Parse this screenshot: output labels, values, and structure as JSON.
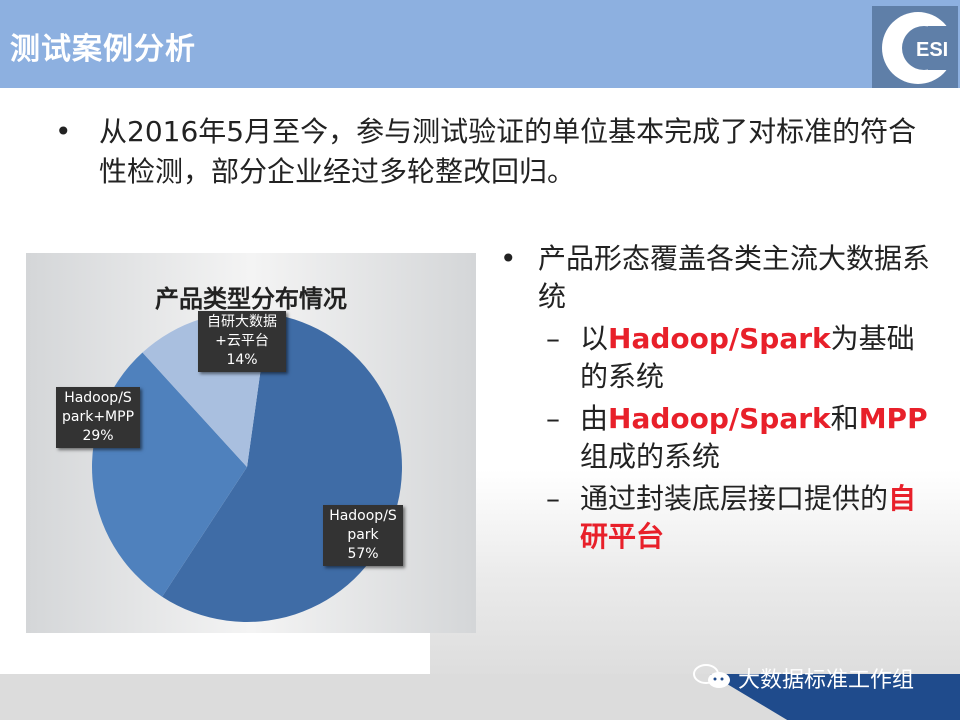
{
  "header": {
    "title": "测试案例分析",
    "logo_text": "ESI"
  },
  "main_bullet": "从2016年5月至今，参与测试验证的单位基本完成了对标准的符合性检测，部分企业经过多轮整改回归。",
  "right": {
    "bullet": "产品形态覆盖各类主流大数据系统",
    "subs": [
      {
        "pre": "以",
        "red": "Hadoop/Spark",
        "post": "为基础的系统"
      },
      {
        "pre": "由",
        "red": "Hadoop/Spark",
        "mid": "和",
        "red2": "MPP",
        "post": "组成的系统"
      },
      {
        "pre": "通过封装底层接口提供的",
        "red": "自研平台",
        "post": ""
      }
    ]
  },
  "chart_data": {
    "type": "pie",
    "title": "产品类型分布情况",
    "slices": [
      {
        "label": "Hadoop/Spark",
        "label_line1": "Hadoop/S",
        "label_line2": "park",
        "percent_label": "57%",
        "value": 57,
        "color": "#3f6ca6"
      },
      {
        "label": "Hadoop/Spark+MPP",
        "label_line1": "Hadoop/S",
        "label_line2": "park+MPP",
        "percent_label": "29%",
        "value": 29,
        "color": "#4f81bd"
      },
      {
        "label": "自研大数据+云平台",
        "label_line1": "自研大数据",
        "label_line2": "+云平台",
        "percent_label": "14%",
        "value": 14,
        "color": "#a9bfdf"
      }
    ]
  },
  "footer": {
    "brand": "大数据标准工作组"
  }
}
